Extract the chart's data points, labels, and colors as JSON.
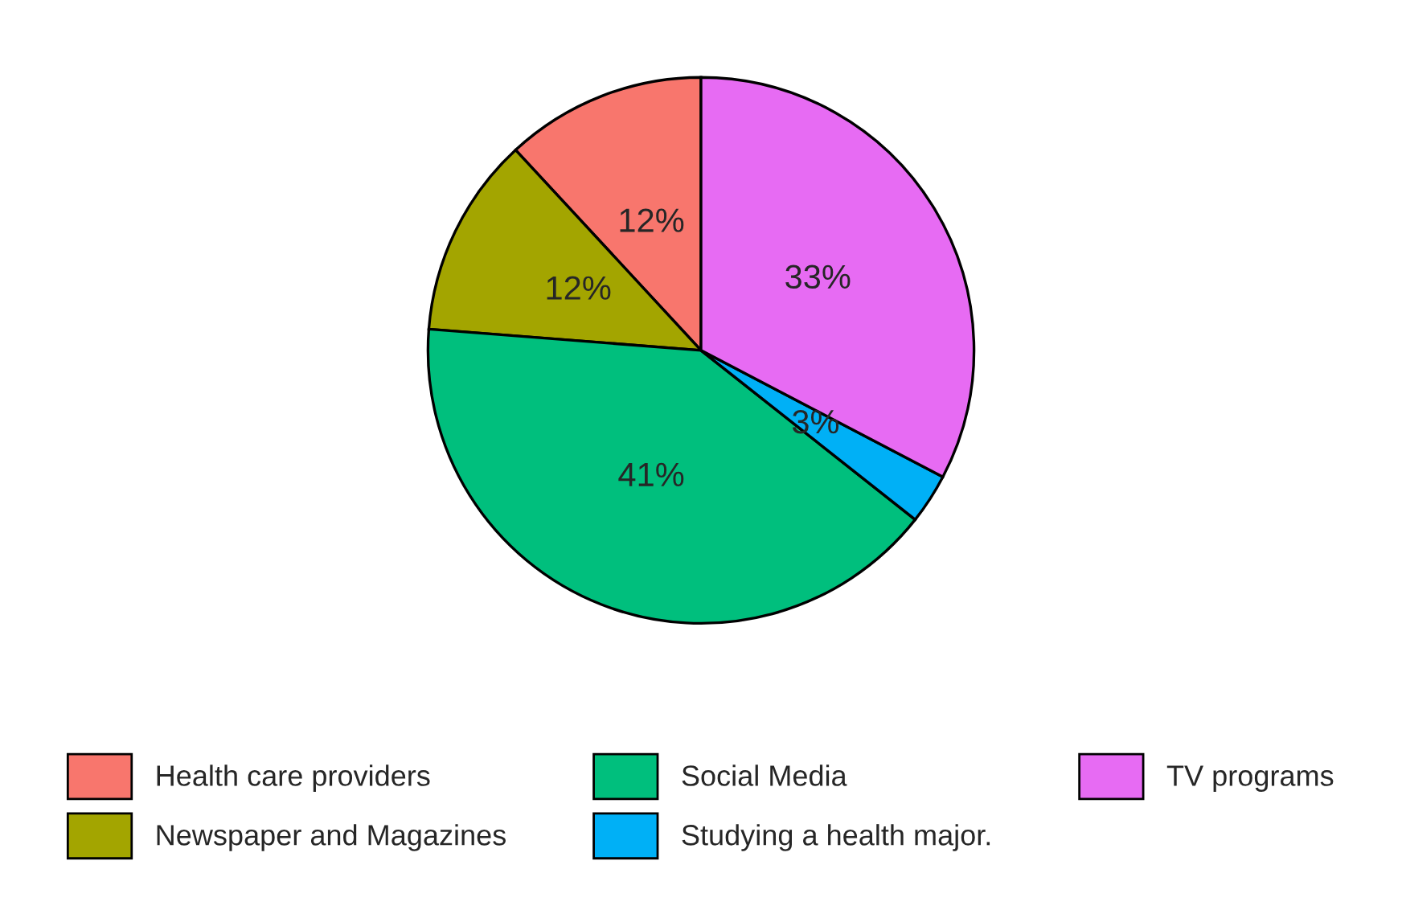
{
  "chart_data": {
    "type": "pie",
    "categories": [
      "Health care providers",
      "Newspaper and Magazines",
      "Social Media",
      "Studying a health major.",
      "TV programs"
    ],
    "values": [
      12,
      12,
      41,
      3,
      33
    ],
    "colors": [
      "#f8766d",
      "#a3a500",
      "#00bf7d",
      "#00b0f6",
      "#e76bf3"
    ],
    "value_labels": [
      "12%",
      "12%",
      "41%",
      "3%",
      "33%"
    ],
    "legend": "bottom"
  }
}
